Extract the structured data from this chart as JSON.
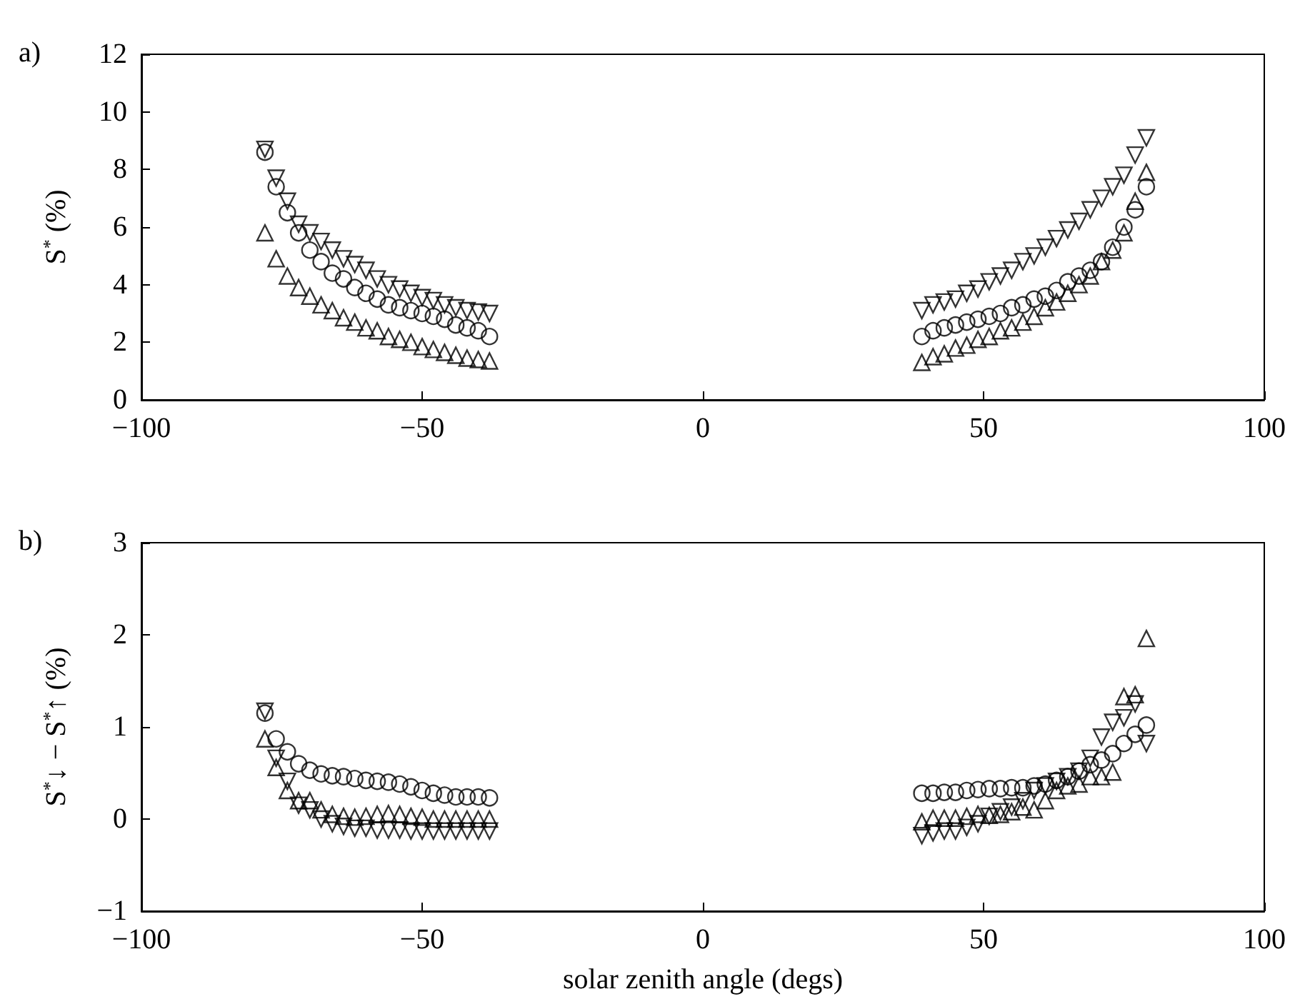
{
  "chart_data": [
    {
      "type": "scatter",
      "title": "a)",
      "ylabel": "S$^{*}$ (%)",
      "xlim": [
        -100,
        100
      ],
      "xticks": [
        -100,
        -50,
        0,
        50,
        100
      ],
      "ylim": [
        0,
        12
      ],
      "yticks": [
        0,
        2,
        4,
        6,
        8,
        10,
        12
      ],
      "grid": false,
      "series": [
        {
          "color": "#000000",
          "marker": "triangle",
          "x": [
            -78,
            -76,
            -74,
            -72,
            -70,
            -68,
            -66,
            -64,
            -62,
            -60,
            -58,
            -56,
            -54,
            -52,
            -50,
            -48,
            -46,
            -44,
            -42,
            -40,
            -38,
            39,
            41,
            43,
            45,
            47,
            49,
            51,
            53,
            55,
            57,
            59,
            61,
            63,
            65,
            67,
            69,
            71,
            73,
            75,
            77,
            79
          ],
          "values": [
            5.8,
            4.9,
            4.3,
            3.9,
            3.6,
            3.3,
            3.1,
            2.85,
            2.7,
            2.5,
            2.4,
            2.2,
            2.1,
            2.0,
            1.85,
            1.75,
            1.65,
            1.55,
            1.45,
            1.4,
            1.35,
            1.3,
            1.5,
            1.6,
            1.8,
            1.9,
            2.1,
            2.2,
            2.4,
            2.5,
            2.7,
            2.9,
            3.2,
            3.4,
            3.7,
            4.0,
            4.3,
            4.8,
            5.2,
            5.8,
            6.9,
            7.9
          ]
        },
        {
          "color": "#000000",
          "marker": "circle",
          "x": [
            -78,
            -76,
            -74,
            -72,
            -70,
            -68,
            -66,
            -64,
            -62,
            -60,
            -58,
            -56,
            -54,
            -52,
            -50,
            -48,
            -46,
            -44,
            -42,
            -40,
            -38,
            39,
            41,
            43,
            45,
            47,
            49,
            51,
            53,
            55,
            57,
            59,
            61,
            63,
            65,
            67,
            69,
            71,
            73,
            75,
            77,
            79
          ],
          "values": [
            8.6,
            7.4,
            6.5,
            5.8,
            5.2,
            4.8,
            4.4,
            4.2,
            3.9,
            3.7,
            3.5,
            3.3,
            3.2,
            3.1,
            3.0,
            2.9,
            2.8,
            2.6,
            2.5,
            2.4,
            2.2,
            2.2,
            2.4,
            2.5,
            2.6,
            2.7,
            2.8,
            2.9,
            3.0,
            3.2,
            3.3,
            3.5,
            3.6,
            3.8,
            4.1,
            4.3,
            4.5,
            4.8,
            5.3,
            6.0,
            6.6,
            7.4
          ]
        },
        {
          "color": "#000000",
          "marker": "triangle_down",
          "x": [
            -78,
            -76,
            -74,
            -72,
            -70,
            -68,
            -66,
            -64,
            -62,
            -60,
            -58,
            -56,
            -54,
            -52,
            -50,
            -48,
            -46,
            -44,
            -42,
            -40,
            -38,
            39,
            41,
            43,
            45,
            47,
            49,
            51,
            53,
            55,
            57,
            59,
            61,
            63,
            65,
            67,
            69,
            71,
            73,
            75,
            77,
            79
          ],
          "values": [
            8.7,
            7.7,
            6.9,
            6.1,
            5.8,
            5.5,
            5.2,
            4.9,
            4.7,
            4.5,
            4.2,
            4.0,
            3.85,
            3.7,
            3.55,
            3.45,
            3.3,
            3.2,
            3.1,
            3.05,
            3.0,
            3.1,
            3.3,
            3.4,
            3.5,
            3.7,
            3.85,
            4.1,
            4.3,
            4.5,
            4.8,
            5.0,
            5.3,
            5.6,
            5.9,
            6.2,
            6.6,
            7.0,
            7.4,
            7.8,
            8.5,
            9.1
          ]
        }
      ]
    },
    {
      "type": "scatter",
      "title": "b)",
      "xlabel": "solar zenith angle (degs)",
      "ylabel": "S$^{*}$↓ − S$^{*}$↑ (%)",
      "xlim": [
        -100,
        100
      ],
      "xticks": [
        -100,
        -50,
        0,
        50,
        100
      ],
      "ylim": [
        -1,
        3
      ],
      "yticks": [
        -1,
        0,
        1,
        2,
        3
      ],
      "grid": false,
      "series": [
        {
          "color": "#000000",
          "marker": "triangle",
          "x": [
            -78,
            -76,
            -74,
            -72,
            -70,
            -68,
            -66,
            -64,
            -62,
            -60,
            -58,
            -56,
            -54,
            -52,
            -50,
            -48,
            -46,
            -44,
            -42,
            -40,
            -38,
            39,
            41,
            43,
            45,
            47,
            49,
            51,
            53,
            55,
            57,
            59,
            61,
            63,
            65,
            67,
            69,
            71,
            73,
            75,
            77,
            79
          ],
          "values": [
            0.87,
            0.56,
            0.31,
            0.2,
            0.2,
            0.1,
            0.05,
            0.03,
            0.02,
            0.03,
            0.05,
            0.06,
            0.05,
            0.03,
            0.02,
            0.0,
            0.0,
            0.0,
            0.0,
            0.0,
            0.0,
            -0.03,
            0.01,
            0.01,
            0.01,
            0.03,
            0.05,
            0.04,
            0.05,
            0.08,
            0.13,
            0.1,
            0.2,
            0.31,
            0.36,
            0.38,
            0.46,
            0.46,
            0.51,
            1.33,
            1.35,
            1.96
          ]
        },
        {
          "color": "#000000",
          "marker": "circle",
          "x": [
            -78,
            -76,
            -74,
            -72,
            -70,
            -68,
            -66,
            -64,
            -62,
            -60,
            -58,
            -56,
            -54,
            -52,
            -50,
            -48,
            -46,
            -44,
            -42,
            -40,
            -38,
            39,
            41,
            43,
            45,
            47,
            49,
            51,
            53,
            55,
            57,
            59,
            61,
            63,
            65,
            67,
            69,
            71,
            73,
            75,
            77,
            79
          ],
          "values": [
            1.15,
            0.87,
            0.73,
            0.6,
            0.53,
            0.49,
            0.47,
            0.46,
            0.44,
            0.42,
            0.41,
            0.4,
            0.38,
            0.35,
            0.31,
            0.28,
            0.26,
            0.24,
            0.24,
            0.24,
            0.23,
            0.28,
            0.28,
            0.29,
            0.29,
            0.31,
            0.32,
            0.33,
            0.33,
            0.34,
            0.34,
            0.36,
            0.38,
            0.42,
            0.46,
            0.52,
            0.59,
            0.64,
            0.71,
            0.82,
            0.92,
            1.02
          ]
        },
        {
          "color": "#000000",
          "marker": "triangle_down",
          "x": [
            -78,
            -76,
            -74,
            -72,
            -70,
            -68,
            -66,
            -64,
            -62,
            -60,
            -58,
            -56,
            -54,
            -52,
            -50,
            -48,
            -46,
            -44,
            -42,
            -40,
            -38,
            39,
            41,
            43,
            45,
            47,
            49,
            51,
            53,
            55,
            57,
            59,
            61,
            63,
            65,
            67,
            69,
            71,
            73,
            75,
            77,
            79
          ],
          "values": [
            1.17,
            0.66,
            0.41,
            0.15,
            0.1,
            0.0,
            -0.05,
            -0.08,
            -0.1,
            -0.1,
            -0.12,
            -0.12,
            -0.12,
            -0.13,
            -0.13,
            -0.13,
            -0.13,
            -0.13,
            -0.13,
            -0.13,
            -0.13,
            -0.18,
            -0.15,
            -0.13,
            -0.13,
            -0.09,
            -0.05,
            0.03,
            0.08,
            0.13,
            0.2,
            0.31,
            0.36,
            0.41,
            0.46,
            0.52,
            0.66,
            0.89,
            1.05,
            1.1,
            1.25,
            0.82
          ]
        }
      ]
    }
  ]
}
